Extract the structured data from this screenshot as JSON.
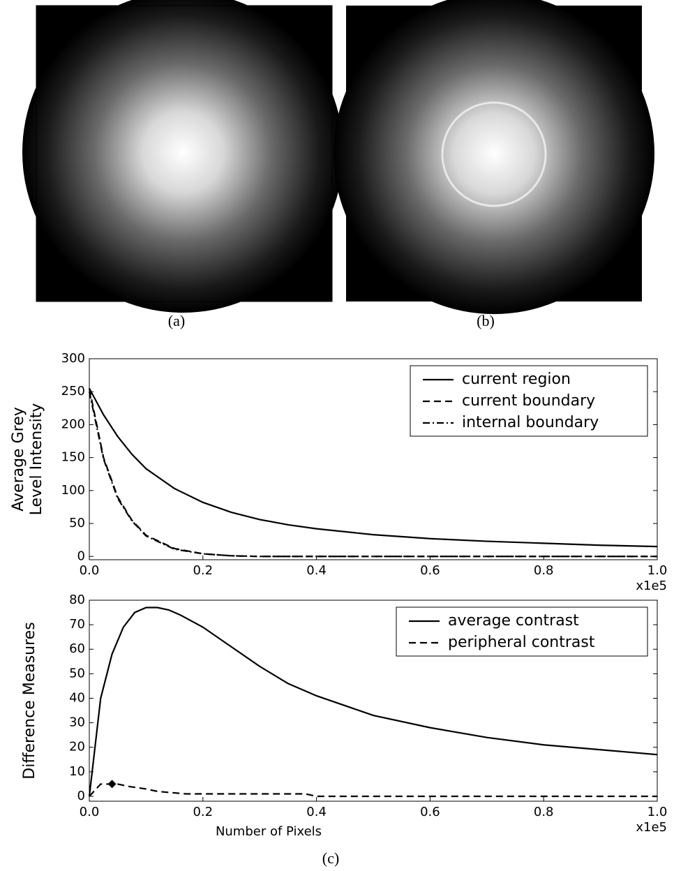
{
  "captions": [
    "(a)",
    "(b)",
    "(c)"
  ],
  "chart_data": [
    {
      "type": "line",
      "ylabel": [
        "Average Grey",
        "Level Intensity"
      ],
      "x_offset_label": "x1e5",
      "xlim": [
        0,
        1
      ],
      "ylim": [
        -5,
        300
      ],
      "xticks": [
        {
          "value": 0,
          "label": "0.0"
        },
        0.2,
        0.4,
        0.6,
        0.8,
        {
          "value": 1,
          "label": "1.0"
        }
      ],
      "yticks": [
        0,
        50,
        100,
        150,
        200,
        250,
        300
      ],
      "legend": "upper right",
      "series": [
        {
          "name": "current region",
          "color": "#000000",
          "style": "solid",
          "x": [
            0,
            0.025,
            0.05,
            0.075,
            0.1,
            0.15,
            0.2,
            0.25,
            0.3,
            0.35,
            0.4,
            0.5,
            0.6,
            0.7,
            0.8,
            0.9,
            1.0
          ],
          "values": [
            255,
            215,
            182,
            155,
            133,
            103,
            82,
            67,
            56,
            48,
            42,
            33,
            27,
            23,
            20,
            17,
            15
          ]
        },
        {
          "name": "current boundary",
          "color": "#000000",
          "style": "dashed",
          "x": [
            0,
            0.025,
            0.05,
            0.075,
            0.1,
            0.15,
            0.2,
            0.25,
            0.3,
            0.35,
            0.4,
            0.5,
            0.6,
            0.7,
            0.8,
            0.9,
            1.0
          ],
          "values": [
            255,
            150,
            90,
            55,
            32,
            12,
            4,
            1,
            0,
            0,
            0,
            0,
            0,
            0,
            0,
            0,
            0
          ]
        },
        {
          "name": "internal boundary",
          "color": "#000000",
          "style": "dashdot",
          "x": [
            0,
            0.025,
            0.05,
            0.075,
            0.1,
            0.15,
            0.2,
            0.25,
            0.3,
            0.35,
            0.4,
            0.5,
            0.6,
            0.7,
            0.8,
            0.9,
            1.0
          ],
          "values": [
            250,
            148,
            88,
            54,
            31,
            11,
            4,
            1,
            0,
            0,
            0,
            0,
            0,
            0,
            0,
            0,
            0
          ]
        }
      ]
    },
    {
      "type": "line",
      "xlabel": "Number of Pixels",
      "ylabel": [
        "Difference Measures"
      ],
      "x_offset_label": "x1e5",
      "xlim": [
        0,
        1
      ],
      "ylim": [
        -2,
        80
      ],
      "xticks": [
        {
          "value": 0,
          "label": "0.0"
        },
        0.2,
        0.4,
        0.6,
        0.8,
        {
          "value": 1,
          "label": "1.0"
        }
      ],
      "yticks": [
        0,
        10,
        20,
        30,
        40,
        50,
        60,
        70,
        80
      ],
      "legend": "upper right",
      "marker": {
        "x": 0.04,
        "y": 5
      },
      "series": [
        {
          "name": "average contrast",
          "color": "#000000",
          "style": "solid",
          "x": [
            0,
            0.02,
            0.04,
            0.06,
            0.08,
            0.1,
            0.12,
            0.14,
            0.16,
            0.2,
            0.25,
            0.3,
            0.35,
            0.4,
            0.5,
            0.6,
            0.7,
            0.8,
            0.9,
            1.0
          ],
          "values": [
            0,
            40,
            58,
            69,
            75,
            77,
            77,
            76,
            74,
            69,
            61,
            53,
            46,
            41,
            33,
            28,
            24,
            21,
            19,
            17
          ]
        },
        {
          "name": "peripheral contrast",
          "color": "#000000",
          "style": "dashed",
          "x": [
            0,
            0.02,
            0.05,
            0.07,
            0.1,
            0.12,
            0.17,
            0.38,
            0.4,
            1.0
          ],
          "values": [
            0,
            5,
            5,
            4,
            3,
            2,
            1,
            1,
            0,
            0
          ]
        }
      ]
    }
  ]
}
